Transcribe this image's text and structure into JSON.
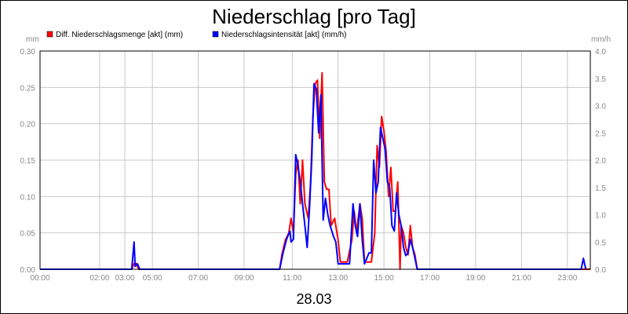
{
  "chart_data": {
    "type": "line",
    "title": "Niederschlag [pro Tag]",
    "date_label": "28.03",
    "y_left_unit": "mm",
    "y_right_unit": "mm/h",
    "ylim_left": [
      0,
      0.3
    ],
    "ylim_right": [
      0,
      4.0
    ],
    "xlim_hours": [
      0,
      24
    ],
    "grid": true,
    "legend_position": "top-left",
    "y_left_ticks": [
      "0.00",
      "0.05",
      "0.10",
      "0.15",
      "0.20",
      "0.25",
      "0.30"
    ],
    "y_right_ticks": [
      "0.0",
      "0.5",
      "1.0",
      "1.5",
      "2.0",
      "2.5",
      "3.0",
      "3.5",
      "4.0"
    ],
    "x_ticks": [
      {
        "hour": 0,
        "label": "00:00"
      },
      {
        "hour": 2.6,
        "label": "02:00"
      },
      {
        "hour": 3.7,
        "label": "03:00"
      },
      {
        "hour": 4.9,
        "label": "05:00"
      },
      {
        "hour": 6.9,
        "label": "07:00"
      },
      {
        "hour": 8.9,
        "label": "09:00"
      },
      {
        "hour": 11.0,
        "label": "11:00"
      },
      {
        "hour": 13.0,
        "label": "13:00"
      },
      {
        "hour": 15.0,
        "label": "15:00"
      },
      {
        "hour": 17.0,
        "label": "17:00"
      },
      {
        "hour": 19.0,
        "label": "19:00"
      },
      {
        "hour": 21.0,
        "label": "21:00"
      },
      {
        "hour": 23.0,
        "label": "23:00"
      }
    ],
    "series": [
      {
        "name": "Diff. Niederschlagsmenge [akt] (mm)",
        "color": "#ff0000",
        "axis": "left",
        "points": [
          [
            0,
            0
          ],
          [
            4.0,
            0
          ],
          [
            4.1,
            0.008
          ],
          [
            4.2,
            0.008
          ],
          [
            4.3,
            0
          ],
          [
            10.45,
            0
          ],
          [
            10.55,
            0.02
          ],
          [
            10.7,
            0.04
          ],
          [
            10.85,
            0.05
          ],
          [
            10.95,
            0.07
          ],
          [
            11.05,
            0.05
          ],
          [
            11.15,
            0.13
          ],
          [
            11.25,
            0.15
          ],
          [
            11.35,
            0.09
          ],
          [
            11.45,
            0.15
          ],
          [
            11.55,
            0.09
          ],
          [
            11.7,
            0.07
          ],
          [
            11.8,
            0.12
          ],
          [
            11.9,
            0.21
          ],
          [
            12.0,
            0.255
          ],
          [
            12.1,
            0.26
          ],
          [
            12.2,
            0.18
          ],
          [
            12.3,
            0.27
          ],
          [
            12.4,
            0.12
          ],
          [
            12.5,
            0.11
          ],
          [
            12.6,
            0.11
          ],
          [
            12.7,
            0.06
          ],
          [
            12.85,
            0.07
          ],
          [
            13.0,
            0.04
          ],
          [
            13.1,
            0.01
          ],
          [
            13.4,
            0.01
          ],
          [
            13.6,
            0.04
          ],
          [
            13.7,
            0.08
          ],
          [
            13.8,
            0.05
          ],
          [
            13.95,
            0.09
          ],
          [
            14.05,
            0.07
          ],
          [
            14.15,
            0.01
          ],
          [
            14.3,
            0.01
          ],
          [
            14.45,
            0.01
          ],
          [
            14.6,
            0.05
          ],
          [
            14.7,
            0.17
          ],
          [
            14.8,
            0.14
          ],
          [
            14.9,
            0.21
          ],
          [
            15.0,
            0.19
          ],
          [
            15.1,
            0.16
          ],
          [
            15.2,
            0.1
          ],
          [
            15.3,
            0.14
          ],
          [
            15.4,
            0.08
          ],
          [
            15.5,
            0.08
          ],
          [
            15.6,
            0.12
          ],
          [
            15.7,
            0
          ],
          [
            15.75,
            0.06
          ],
          [
            15.85,
            0.05
          ],
          [
            15.95,
            0.03
          ],
          [
            16.05,
            0.02
          ],
          [
            16.15,
            0.06
          ],
          [
            16.25,
            0.03
          ],
          [
            16.35,
            0.02
          ],
          [
            16.45,
            0.0
          ],
          [
            24,
            0
          ]
        ]
      },
      {
        "name": "Niederschlagsintensität [akt] (mm/h)",
        "color": "#0000ff",
        "axis": "right",
        "points": [
          [
            0,
            0
          ],
          [
            4.0,
            0
          ],
          [
            4.1,
            0.5
          ],
          [
            4.15,
            0.05
          ],
          [
            4.25,
            0.1
          ],
          [
            4.35,
            0
          ],
          [
            10.45,
            0
          ],
          [
            10.6,
            0.3
          ],
          [
            10.75,
            0.55
          ],
          [
            10.9,
            0.7
          ],
          [
            10.95,
            0.5
          ],
          [
            11.05,
            0.55
          ],
          [
            11.15,
            2.1
          ],
          [
            11.25,
            1.9
          ],
          [
            11.35,
            1.6
          ],
          [
            11.45,
            1.2
          ],
          [
            11.55,
            0.8
          ],
          [
            11.65,
            0.4
          ],
          [
            11.75,
            1.1
          ],
          [
            11.85,
            2.0
          ],
          [
            11.95,
            3.4
          ],
          [
            12.05,
            3.3
          ],
          [
            12.15,
            2.5
          ],
          [
            12.25,
            3.2
          ],
          [
            12.35,
            0.9
          ],
          [
            12.45,
            1.3
          ],
          [
            12.55,
            1.0
          ],
          [
            12.65,
            0.8
          ],
          [
            12.8,
            0.6
          ],
          [
            12.9,
            0.5
          ],
          [
            13.0,
            0.1
          ],
          [
            13.5,
            0.1
          ],
          [
            13.65,
            1.2
          ],
          [
            13.75,
            0.8
          ],
          [
            13.85,
            0.6
          ],
          [
            13.95,
            1.2
          ],
          [
            14.05,
            0.55
          ],
          [
            14.15,
            0.1
          ],
          [
            14.35,
            0.3
          ],
          [
            14.45,
            0.3
          ],
          [
            14.55,
            2.0
          ],
          [
            14.65,
            1.4
          ],
          [
            14.75,
            1.6
          ],
          [
            14.85,
            2.6
          ],
          [
            14.95,
            2.4
          ],
          [
            15.05,
            2.2
          ],
          [
            15.15,
            1.6
          ],
          [
            15.25,
            1.5
          ],
          [
            15.35,
            0.8
          ],
          [
            15.45,
            0.7
          ],
          [
            15.55,
            1.4
          ],
          [
            15.65,
            1.0
          ],
          [
            15.75,
            0.8
          ],
          [
            15.85,
            0.4
          ],
          [
            15.95,
            0.25
          ],
          [
            16.05,
            0.3
          ],
          [
            16.15,
            0.55
          ],
          [
            16.25,
            0.4
          ],
          [
            16.35,
            0.2
          ],
          [
            16.45,
            0
          ],
          [
            23.6,
            0
          ],
          [
            23.7,
            0.2
          ],
          [
            23.8,
            0
          ]
        ]
      }
    ]
  }
}
